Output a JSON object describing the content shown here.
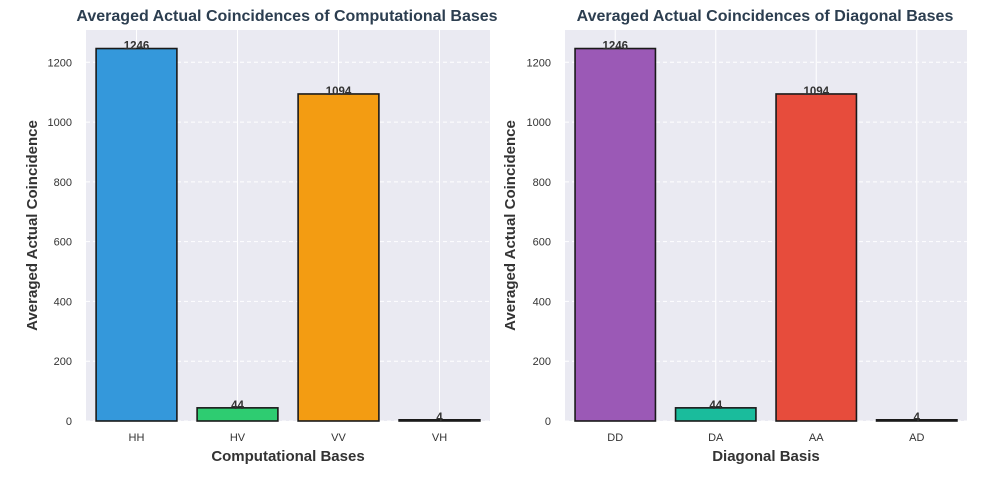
{
  "chart_data": [
    {
      "type": "bar",
      "title": "Averaged Actual Coincidences of Computational Bases",
      "xlabel": "Computational Bases",
      "ylabel": "Averaged Actual Coincidence",
      "categories": [
        "HH",
        "HV",
        "VV",
        "VH"
      ],
      "values": [
        1246,
        44,
        1094,
        4
      ],
      "colors": [
        "#3498db",
        "#2ecc71",
        "#f39c12",
        "#e74c3c"
      ],
      "ylim": [
        0,
        1308
      ],
      "yticks": [
        0,
        200,
        400,
        600,
        800,
        1000,
        1200
      ],
      "grid": true
    },
    {
      "type": "bar",
      "title": "Averaged Actual Coincidences of Diagonal Bases",
      "xlabel": "Diagonal Basis",
      "ylabel": "Averaged Actual Coincidence",
      "categories": [
        "DD",
        "DA",
        "AA",
        "AD"
      ],
      "values": [
        1246,
        44,
        1094,
        4
      ],
      "colors": [
        "#9b59b6",
        "#1abc9c",
        "#e74c3c",
        "#f1c40f"
      ],
      "ylim": [
        0,
        1308
      ],
      "yticks": [
        0,
        200,
        400,
        600,
        800,
        1000,
        1200
      ],
      "grid": true
    }
  ]
}
